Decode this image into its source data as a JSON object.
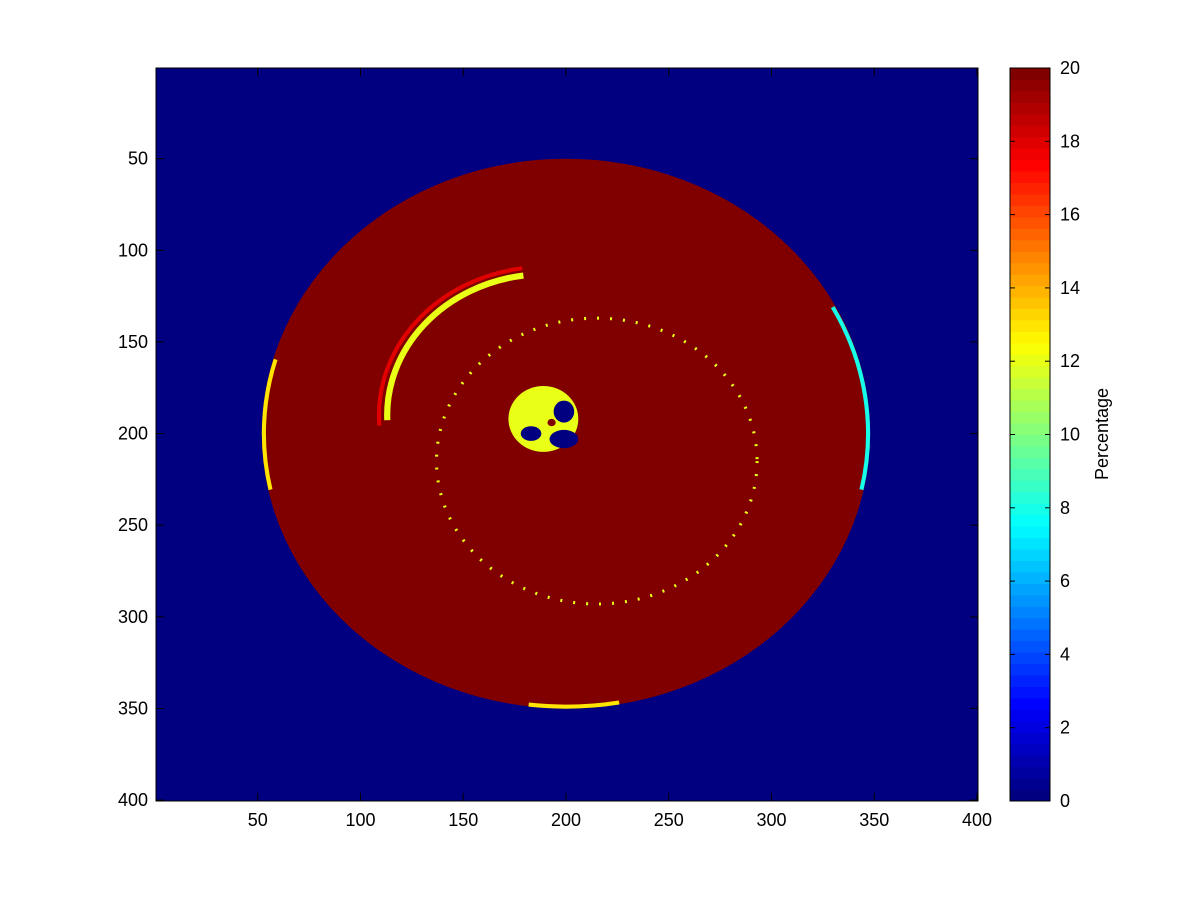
{
  "chart_data": {
    "type": "image",
    "colormap": "jet",
    "clim": [
      0,
      20
    ],
    "background": 0,
    "xlim": [
      0.5,
      400.5
    ],
    "ylim": [
      0.5,
      400.5
    ],
    "y_reverse": true,
    "xticks": [
      50,
      100,
      150,
      200,
      250,
      300,
      350,
      400
    ],
    "yticks": [
      50,
      100,
      150,
      200,
      250,
      300,
      350,
      400
    ],
    "colorbar": {
      "label": "Percentage",
      "ticks": [
        0,
        2,
        4,
        6,
        8,
        10,
        12,
        14,
        16,
        18,
        20
      ]
    },
    "features": [
      {
        "shape": "ellipse",
        "cx": 200,
        "cy": 200,
        "rx": 148,
        "ry": 150,
        "value": 20
      },
      {
        "shape": "arc",
        "cx": 190,
        "cy": 190,
        "r": 81,
        "start": 176,
        "end": 262,
        "width": 2,
        "value": 18
      },
      {
        "shape": "arc",
        "cx": 190,
        "cy": 190,
        "r": 77,
        "start": 178,
        "end": 262,
        "width": 3,
        "value": 12
      },
      {
        "shape": "ring",
        "cx": 215,
        "cy": 215,
        "r": 78,
        "width": 1,
        "value": 12
      },
      {
        "shape": "arc",
        "cx": 200,
        "cy": 200,
        "r": 147,
        "start": 168,
        "end": 196,
        "width": 2,
        "value": 13
      },
      {
        "shape": "arc",
        "cx": 200,
        "cy": 200,
        "r": 147,
        "start": -28,
        "end": 12,
        "width": 2,
        "value": 8
      },
      {
        "shape": "arc",
        "cx": 200,
        "cy": 200,
        "r": 149,
        "start": 80,
        "end": 97,
        "width": 2,
        "value": 13
      },
      {
        "shape": "ellipse",
        "cx": 189,
        "cy": 192,
        "rx": 17,
        "ry": 18,
        "value": 12
      },
      {
        "shape": "ellipse",
        "cx": 199,
        "cy": 188,
        "rx": 5,
        "ry": 6,
        "value": 0
      },
      {
        "shape": "ellipse",
        "cx": 183,
        "cy": 200,
        "rx": 5,
        "ry": 4,
        "value": 0
      },
      {
        "shape": "ellipse",
        "cx": 199,
        "cy": 203,
        "rx": 7,
        "ry": 5,
        "value": 0
      },
      {
        "shape": "ellipse",
        "cx": 193,
        "cy": 194,
        "rx": 2,
        "ry": 2,
        "value": 20
      }
    ]
  }
}
